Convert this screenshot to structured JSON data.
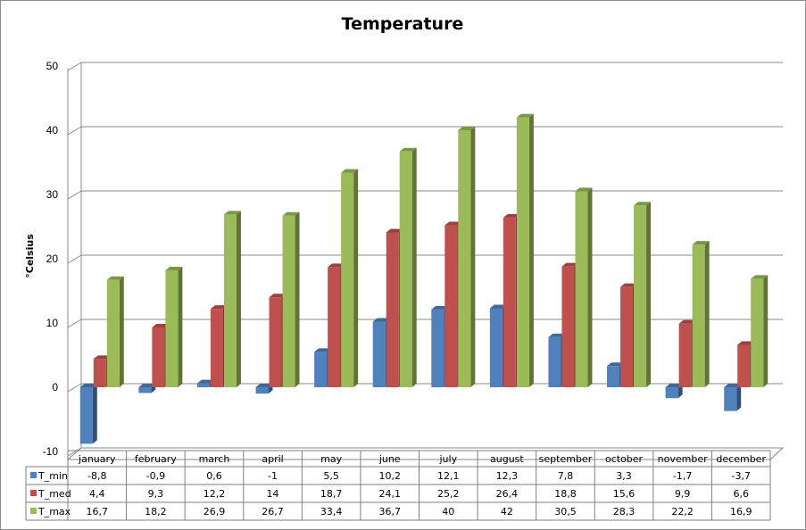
{
  "chart_data": {
    "type": "bar",
    "title": "Temperature",
    "xlabel": "",
    "ylabel": "°Celsius",
    "ylim": [
      -10,
      50
    ],
    "yticks": [
      -10,
      0,
      10,
      20,
      30,
      40,
      50
    ],
    "grid": true,
    "categories": [
      "january",
      "february",
      "march",
      "april",
      "may",
      "june",
      "july",
      "august",
      "september",
      "october",
      "november",
      "december"
    ],
    "series": [
      {
        "name": "T_min",
        "color": "#4f81bd",
        "labels": [
          "-8,8",
          "-0,9",
          "0,6",
          "-1",
          "5,5",
          "10,2",
          "12,1",
          "12,3",
          "7,8",
          "3,3",
          "-1,7",
          "-3,7"
        ],
        "values": [
          -8.8,
          -0.9,
          0.6,
          -1,
          5.5,
          10.2,
          12.1,
          12.3,
          7.8,
          3.3,
          -1.7,
          -3.7
        ]
      },
      {
        "name": "T_med",
        "color": "#c0504d",
        "labels": [
          "4,4",
          "9,3",
          "12,2",
          "14",
          "18,7",
          "24,1",
          "25,2",
          "26,4",
          "18,8",
          "15,6",
          "9,9",
          "6,6"
        ],
        "values": [
          4.4,
          9.3,
          12.2,
          14,
          18.7,
          24.1,
          25.2,
          26.4,
          18.8,
          15.6,
          9.9,
          6.6
        ]
      },
      {
        "name": "T_max",
        "color": "#9bbb59",
        "labels": [
          "16,7",
          "18,2",
          "26,9",
          "26,7",
          "33,4",
          "36,7",
          "40",
          "42",
          "30,5",
          "28,3",
          "22,2",
          "16,9"
        ],
        "values": [
          16.7,
          18.2,
          26.9,
          26.7,
          33.4,
          36.7,
          40,
          42,
          30.5,
          28.3,
          22.2,
          16.9
        ]
      }
    ],
    "legend": "data-table"
  }
}
